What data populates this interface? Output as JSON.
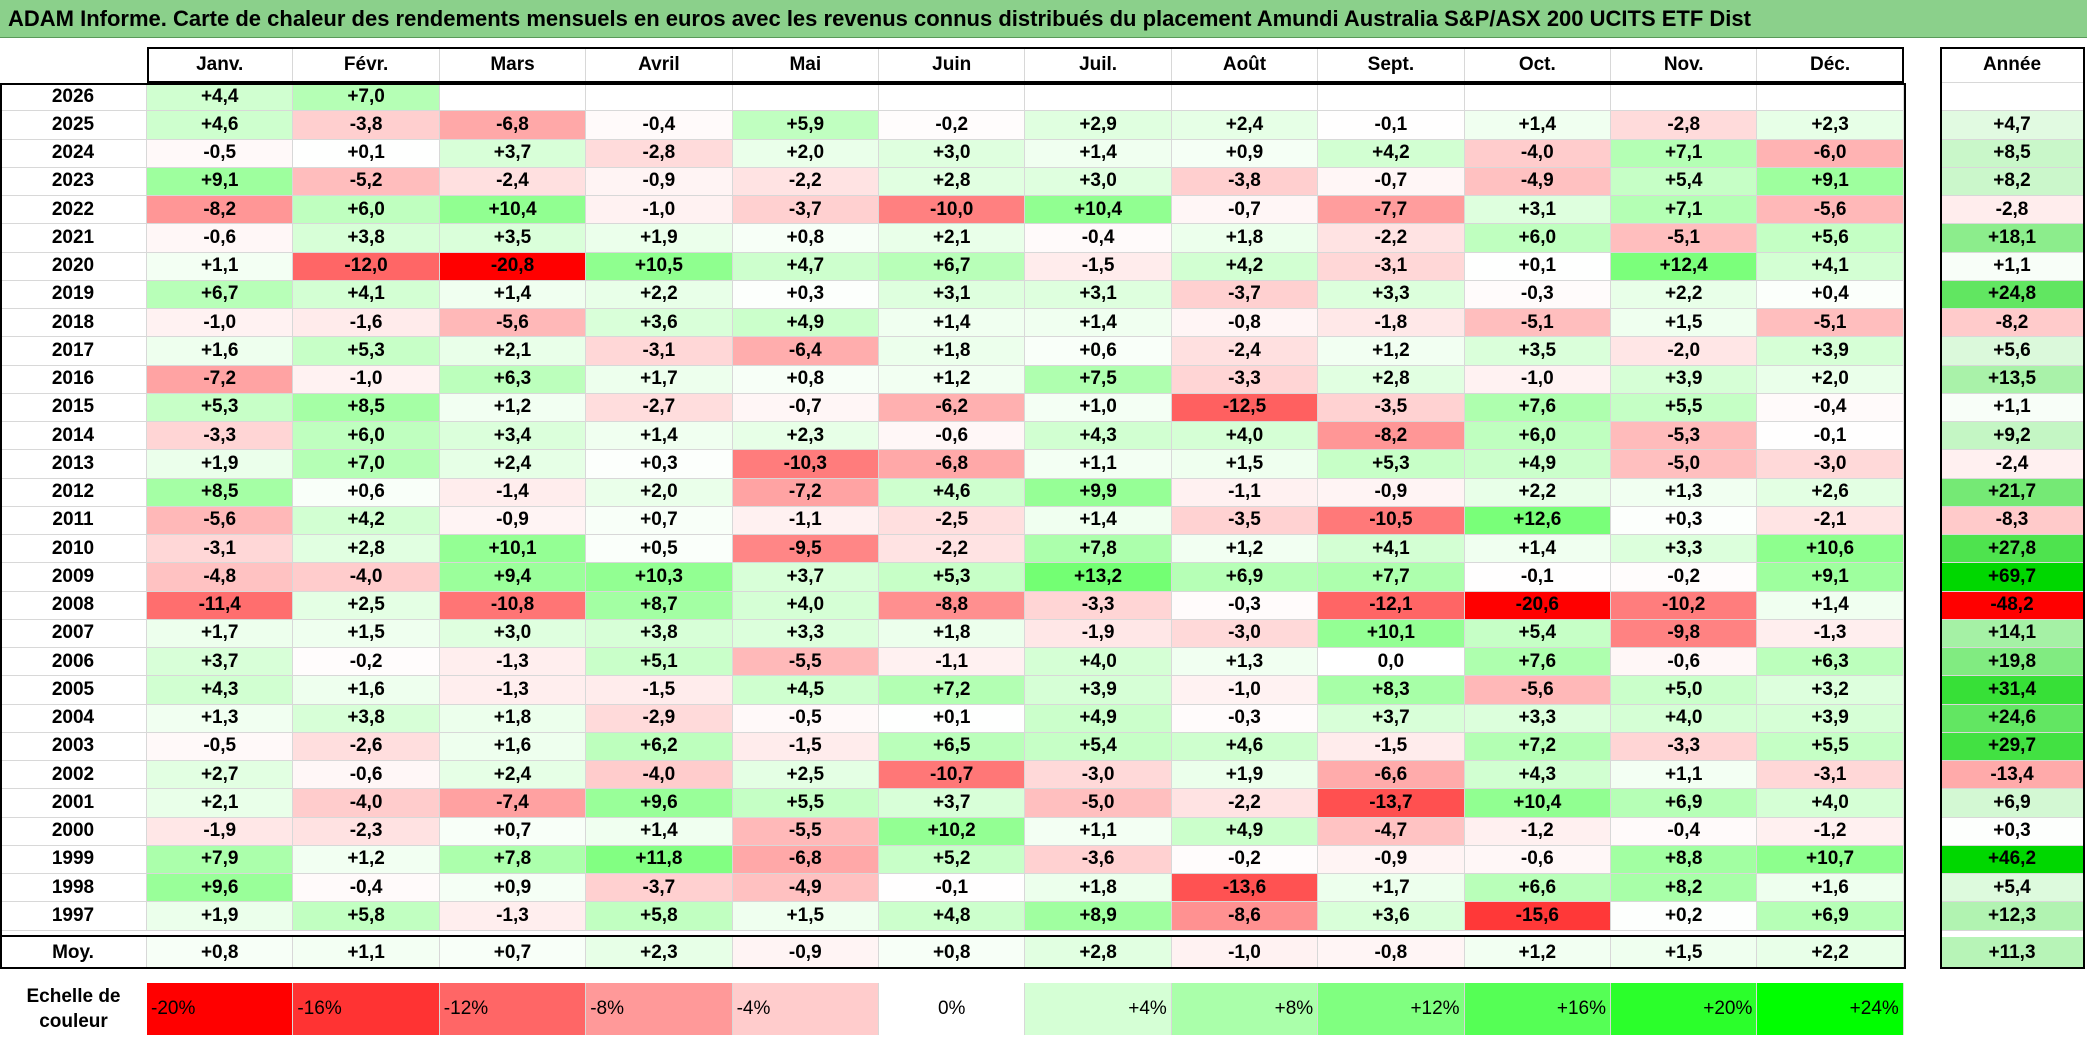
{
  "title": "ADAM Informe. Carte de chaleur des rendements mensuels en euros avec les revenus connus distribués du placement Amundi Australia S&P/ASX 200 UCITS ETF Dist",
  "chart_data": {
    "type": "heatmap",
    "months": [
      "Janv.",
      "Févr.",
      "Mars",
      "Avril",
      "Mai",
      "Juin",
      "Juil.",
      "Août",
      "Sept.",
      "Oct.",
      "Nov.",
      "Déc."
    ],
    "year_header": "Année",
    "rows": [
      {
        "year": "2026",
        "m": [
          "+4,4",
          "+7,0",
          "",
          "",
          "",
          "",
          "",
          "",
          "",
          "",
          "",
          ""
        ],
        "y": ""
      },
      {
        "year": "2025",
        "m": [
          "+4,6",
          "-3,8",
          "-6,8",
          "-0,4",
          "+5,9",
          "-0,2",
          "+2,9",
          "+2,4",
          "-0,1",
          "+1,4",
          "-2,8",
          "+2,3"
        ],
        "y": "+4,7"
      },
      {
        "year": "2024",
        "m": [
          "-0,5",
          "+0,1",
          "+3,7",
          "-2,8",
          "+2,0",
          "+3,0",
          "+1,4",
          "+0,9",
          "+4,2",
          "-4,0",
          "+7,1",
          "-6,0"
        ],
        "y": "+8,5"
      },
      {
        "year": "2023",
        "m": [
          "+9,1",
          "-5,2",
          "-2,4",
          "-0,9",
          "-2,2",
          "+2,8",
          "+3,0",
          "-3,8",
          "-0,7",
          "-4,9",
          "+5,4",
          "+9,1"
        ],
        "y": "+8,2"
      },
      {
        "year": "2022",
        "m": [
          "-8,2",
          "+6,0",
          "+10,4",
          "-1,0",
          "-3,7",
          "-10,0",
          "+10,4",
          "-0,7",
          "-7,7",
          "+3,1",
          "+7,1",
          "-5,6"
        ],
        "y": "-2,8"
      },
      {
        "year": "2021",
        "m": [
          "-0,6",
          "+3,8",
          "+3,5",
          "+1,9",
          "+0,8",
          "+2,1",
          "-0,4",
          "+1,8",
          "-2,2",
          "+6,0",
          "-5,1",
          "+5,6"
        ],
        "y": "+18,1"
      },
      {
        "year": "2020",
        "m": [
          "+1,1",
          "-12,0",
          "-20,8",
          "+10,5",
          "+4,7",
          "+6,7",
          "-1,5",
          "+4,2",
          "-3,1",
          "+0,1",
          "+12,4",
          "+4,1"
        ],
        "y": "+1,1"
      },
      {
        "year": "2019",
        "m": [
          "+6,7",
          "+4,1",
          "+1,4",
          "+2,2",
          "+0,3",
          "+3,1",
          "+3,1",
          "-3,7",
          "+3,3",
          "-0,3",
          "+2,2",
          "+0,4"
        ],
        "y": "+24,8"
      },
      {
        "year": "2018",
        "m": [
          "-1,0",
          "-1,6",
          "-5,6",
          "+3,6",
          "+4,9",
          "+1,4",
          "+1,4",
          "-0,8",
          "-1,8",
          "-5,1",
          "+1,5",
          "-5,1"
        ],
        "y": "-8,2"
      },
      {
        "year": "2017",
        "m": [
          "+1,6",
          "+5,3",
          "+2,1",
          "-3,1",
          "-6,4",
          "+1,8",
          "+0,6",
          "-2,4",
          "+1,2",
          "+3,5",
          "-2,0",
          "+3,9"
        ],
        "y": "+5,6"
      },
      {
        "year": "2016",
        "m": [
          "-7,2",
          "-1,0",
          "+6,3",
          "+1,7",
          "+0,8",
          "+1,2",
          "+7,5",
          "-3,3",
          "+2,8",
          "-1,0",
          "+3,9",
          "+2,0"
        ],
        "y": "+13,5"
      },
      {
        "year": "2015",
        "m": [
          "+5,3",
          "+8,5",
          "+1,2",
          "-2,7",
          "-0,7",
          "-6,2",
          "+1,0",
          "-12,5",
          "-3,5",
          "+7,6",
          "+5,5",
          "-0,4"
        ],
        "y": "+1,1"
      },
      {
        "year": "2014",
        "m": [
          "-3,3",
          "+6,0",
          "+3,4",
          "+1,4",
          "+2,3",
          "-0,6",
          "+4,3",
          "+4,0",
          "-8,2",
          "+6,0",
          "-5,3",
          "-0,1"
        ],
        "y": "+9,2"
      },
      {
        "year": "2013",
        "m": [
          "+1,9",
          "+7,0",
          "+2,4",
          "+0,3",
          "-10,3",
          "-6,8",
          "+1,1",
          "+1,5",
          "+5,3",
          "+4,9",
          "-5,0",
          "-3,0"
        ],
        "y": "-2,4"
      },
      {
        "year": "2012",
        "m": [
          "+8,5",
          "+0,6",
          "-1,4",
          "+2,0",
          "-7,2",
          "+4,6",
          "+9,9",
          "-1,1",
          "-0,9",
          "+2,2",
          "+1,3",
          "+2,6"
        ],
        "y": "+21,7"
      },
      {
        "year": "2011",
        "m": [
          "-5,6",
          "+4,2",
          "-0,9",
          "+0,7",
          "-1,1",
          "-2,5",
          "+1,4",
          "-3,5",
          "-10,5",
          "+12,6",
          "+0,3",
          "-2,1"
        ],
        "y": "-8,3"
      },
      {
        "year": "2010",
        "m": [
          "-3,1",
          "+2,8",
          "+10,1",
          "+0,5",
          "-9,5",
          "-2,2",
          "+7,8",
          "+1,2",
          "+4,1",
          "+1,4",
          "+3,3",
          "+10,6"
        ],
        "y": "+27,8"
      },
      {
        "year": "2009",
        "m": [
          "-4,8",
          "-4,0",
          "+9,4",
          "+10,3",
          "+3,7",
          "+5,3",
          "+13,2",
          "+6,9",
          "+7,7",
          "-0,1",
          "-0,2",
          "+9,1"
        ],
        "y": "+69,7"
      },
      {
        "year": "2008",
        "m": [
          "-11,4",
          "+2,5",
          "-10,8",
          "+8,7",
          "+4,0",
          "-8,8",
          "-3,3",
          "-0,3",
          "-12,1",
          "-20,6",
          "-10,2",
          "+1,4"
        ],
        "y": "-48,2"
      },
      {
        "year": "2007",
        "m": [
          "+1,7",
          "+1,5",
          "+3,0",
          "+3,8",
          "+3,3",
          "+1,8",
          "-1,9",
          "-3,0",
          "+10,1",
          "+5,4",
          "-9,8",
          "-1,3"
        ],
        "y": "+14,1"
      },
      {
        "year": "2006",
        "m": [
          "+3,7",
          "-0,2",
          "-1,3",
          "+5,1",
          "-5,5",
          "-1,1",
          "+4,0",
          "+1,3",
          "0,0",
          "+7,6",
          "-0,6",
          "+6,3"
        ],
        "y": "+19,8"
      },
      {
        "year": "2005",
        "m": [
          "+4,3",
          "+1,6",
          "-1,3",
          "-1,5",
          "+4,5",
          "+7,2",
          "+3,9",
          "-1,0",
          "+8,3",
          "-5,6",
          "+5,0",
          "+3,2"
        ],
        "y": "+31,4"
      },
      {
        "year": "2004",
        "m": [
          "+1,3",
          "+3,8",
          "+1,8",
          "-2,9",
          "-0,5",
          "+0,1",
          "+4,9",
          "-0,3",
          "+3,7",
          "+3,3",
          "+4,0",
          "+3,9"
        ],
        "y": "+24,6"
      },
      {
        "year": "2003",
        "m": [
          "-0,5",
          "-2,6",
          "+1,6",
          "+6,2",
          "-1,5",
          "+6,5",
          "+5,4",
          "+4,6",
          "-1,5",
          "+7,2",
          "-3,3",
          "+5,5"
        ],
        "y": "+29,7"
      },
      {
        "year": "2002",
        "m": [
          "+2,7",
          "-0,6",
          "+2,4",
          "-4,0",
          "+2,5",
          "-10,7",
          "-3,0",
          "+1,9",
          "-6,6",
          "+4,3",
          "+1,1",
          "-3,1"
        ],
        "y": "-13,4"
      },
      {
        "year": "2001",
        "m": [
          "+2,1",
          "-4,0",
          "-7,4",
          "+9,6",
          "+5,5",
          "+3,7",
          "-5,0",
          "-2,2",
          "-13,7",
          "+10,4",
          "+6,9",
          "+4,0"
        ],
        "y": "+6,9"
      },
      {
        "year": "2000",
        "m": [
          "-1,9",
          "-2,3",
          "+0,7",
          "+1,4",
          "-5,5",
          "+10,2",
          "+1,1",
          "+4,9",
          "-4,7",
          "-1,2",
          "-0,4",
          "-1,2"
        ],
        "y": "+0,3"
      },
      {
        "year": "1999",
        "m": [
          "+7,9",
          "+1,2",
          "+7,8",
          "+11,8",
          "-6,8",
          "+5,2",
          "-3,6",
          "-0,2",
          "-0,9",
          "-0,6",
          "+8,8",
          "+10,7"
        ],
        "y": "+46,2"
      },
      {
        "year": "1998",
        "m": [
          "+9,6",
          "-0,4",
          "+0,9",
          "-3,7",
          "-4,9",
          "-0,1",
          "+1,8",
          "-13,6",
          "+1,7",
          "+6,6",
          "+8,2",
          "+1,6"
        ],
        "y": "+5,4"
      },
      {
        "year": "1997",
        "m": [
          "+1,9",
          "+5,8",
          "-1,3",
          "+5,8",
          "+1,5",
          "+4,8",
          "+8,9",
          "-8,6",
          "+3,6",
          "-15,6",
          "+0,2",
          "+6,9"
        ],
        "y": "+12,3"
      }
    ],
    "average": {
      "label": "Moy.",
      "m": [
        "+0,8",
        "+1,1",
        "+0,7",
        "+2,3",
        "-0,9",
        "+0,8",
        "+2,8",
        "-1,0",
        "-0,8",
        "+1,2",
        "+1,5",
        "+2,2"
      ],
      "y": "+11,3"
    },
    "scale": {
      "label_line1": "Echelle de",
      "label_line2": "couleur",
      "stops": [
        "-20%",
        "-16%",
        "-12%",
        "-8%",
        "-4%",
        "0%",
        "+4%",
        "+8%",
        "+12%",
        "+16%",
        "+20%",
        "+24%"
      ]
    }
  }
}
